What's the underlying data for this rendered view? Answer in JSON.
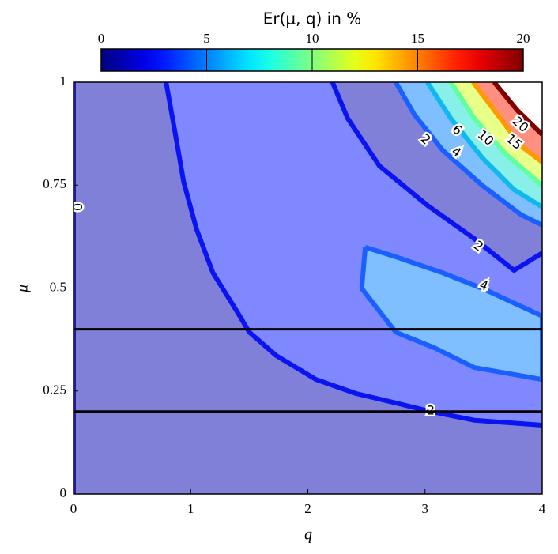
{
  "chart_data": {
    "type": "contour",
    "colorbar_title": "Er(μ, q) in %",
    "colormap": "jet",
    "clim": [
      0,
      20
    ],
    "cticks": [
      0,
      5,
      10,
      15,
      20
    ],
    "xlabel": "q",
    "ylabel": "μ",
    "xlim": [
      0,
      4
    ],
    "xticks": [
      0,
      1,
      2,
      3,
      4
    ],
    "ylim": [
      0,
      1
    ],
    "yticks": [
      0,
      0.25,
      0.5,
      0.75,
      1
    ],
    "hlines": [
      0.4,
      0.2
    ],
    "hline_color": "#000000",
    "contours": [
      {
        "level": 0,
        "color": "#1a1a9a",
        "fill": "#8080d8",
        "x": [
          0,
          0
        ],
        "y": [
          0,
          1
        ]
      },
      {
        "level": 2,
        "color": "#0a14f0",
        "fill": "#8088ff",
        "x": [
          0.79,
          0.87,
          0.94,
          1.05,
          1.19,
          1.4,
          1.5,
          1.73,
          2.07,
          2.41,
          2.75,
          3.02,
          3.42,
          4.0
        ],
        "y": [
          1.0,
          0.873,
          0.758,
          0.643,
          0.537,
          0.441,
          0.393,
          0.336,
          0.278,
          0.244,
          0.221,
          0.202,
          0.179,
          0.167
        ]
      },
      {
        "level": 2,
        "color": "#0a14f0",
        "fill": "#8080d8",
        "x": [
          2.21,
          2.34,
          2.61,
          3.02,
          3.42,
          3.76,
          4.0
        ],
        "y": [
          1.0,
          0.912,
          0.797,
          0.701,
          0.62,
          0.543,
          0.585
        ]
      },
      {
        "level": 4,
        "color": "#1a60ff",
        "fill": "#80bfff",
        "x": [
          2.49,
          2.75,
          3.15,
          3.49,
          4.0,
          4.0,
          3.42,
          3.08,
          2.75,
          2.46,
          2.49
        ],
        "y": [
          0.599,
          0.576,
          0.537,
          0.499,
          0.432,
          0.278,
          0.307,
          0.355,
          0.393,
          0.499,
          0.599
        ]
      },
      {
        "level": 4,
        "color": "#1a60ff",
        "fill": "#80bfff",
        "x": [
          2.75,
          2.91,
          3.15,
          3.49,
          3.82,
          4.0
        ],
        "y": [
          1.0,
          0.921,
          0.835,
          0.749,
          0.678,
          0.653
        ]
      },
      {
        "level": 6,
        "color": "#10b8f0",
        "fill": "#88f0e8",
        "x": [
          3.02,
          3.22,
          3.49,
          3.76,
          4.0
        ],
        "y": [
          1.0,
          0.912,
          0.816,
          0.739,
          0.697
        ]
      },
      {
        "level": 10,
        "color": "#60ffa0",
        "fill": "#e8ff88",
        "x": [
          3.22,
          3.42,
          3.69,
          4.0
        ],
        "y": [
          1.0,
          0.912,
          0.825,
          0.749
        ]
      },
      {
        "level": 15,
        "color": "#ff9a00",
        "fill": "#ff9080",
        "x": [
          3.41,
          3.62,
          3.82,
          4.0
        ],
        "y": [
          1.0,
          0.921,
          0.845,
          0.806
        ]
      },
      {
        "level": 20,
        "color": "#800000",
        "fill": "#ffffff",
        "x": [
          3.59,
          3.79,
          4.0
        ],
        "y": [
          1.0,
          0.931,
          0.873
        ]
      }
    ]
  }
}
